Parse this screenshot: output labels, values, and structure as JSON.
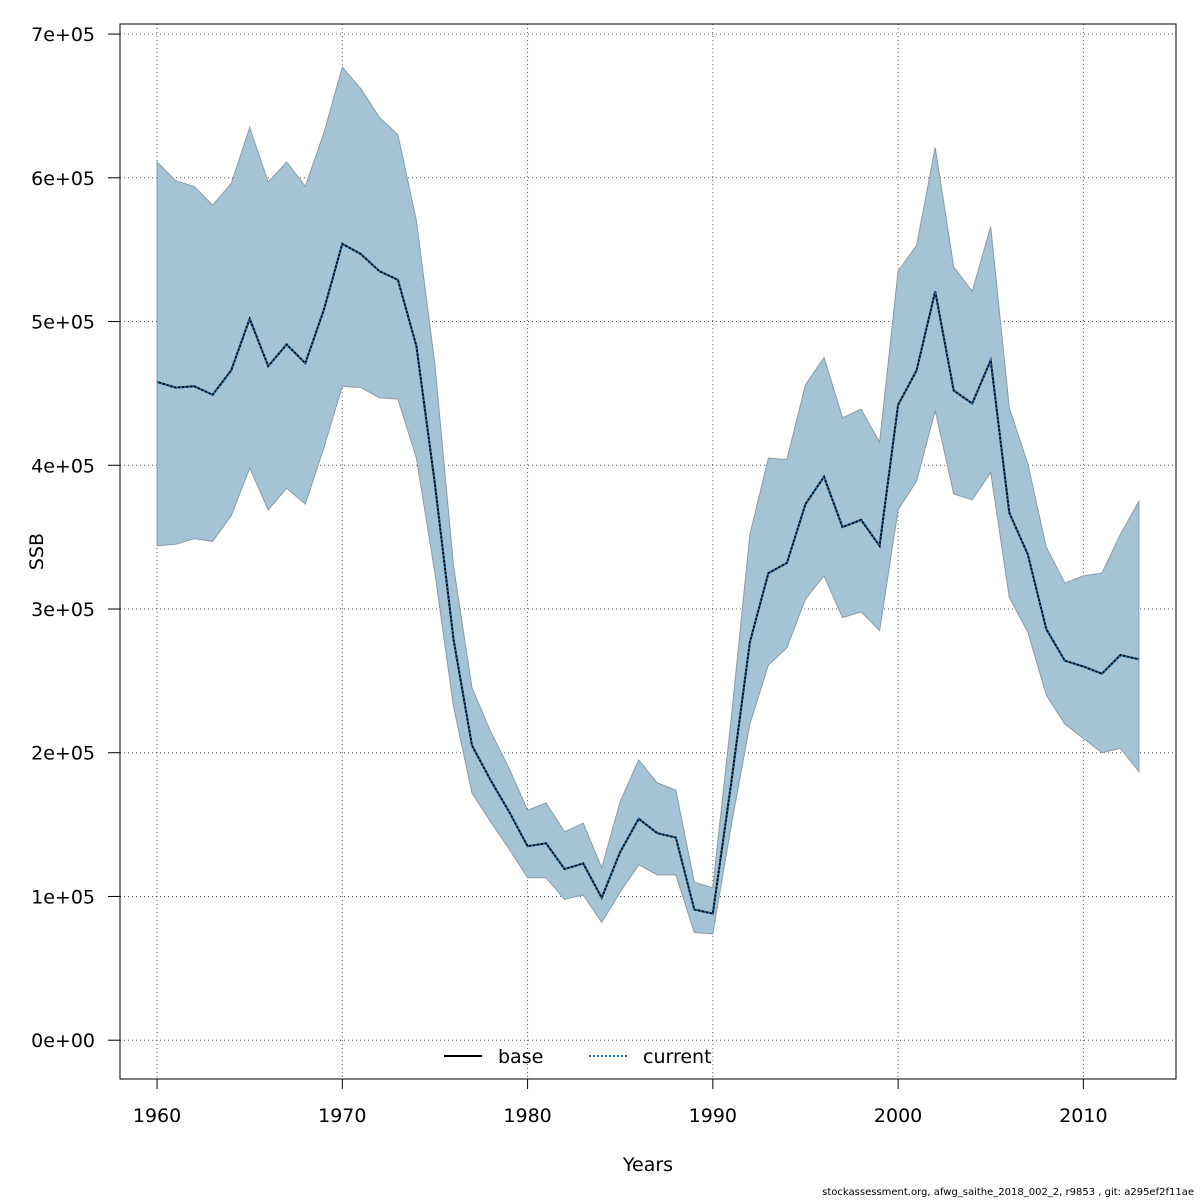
{
  "chart_data": {
    "type": "area",
    "xlabel": "Years",
    "ylabel": "SSB",
    "xlim": [
      1958,
      2015
    ],
    "ylim": [
      -27000,
      707000
    ],
    "x_ticks": [
      1960,
      1970,
      1980,
      1990,
      2000,
      2010
    ],
    "x_tick_labels": [
      "1960",
      "1970",
      "1980",
      "1990",
      "2000",
      "2010"
    ],
    "y_ticks": [
      0,
      100000,
      200000,
      300000,
      400000,
      500000,
      600000,
      700000
    ],
    "y_tick_labels": [
      "0e+00",
      "1e+05",
      "2e+05",
      "3e+05",
      "4e+05",
      "5e+05",
      "6e+05",
      "7e+05"
    ],
    "grid": true,
    "legend_position": "bottom-center",
    "band_color": "#a4c4d6",
    "years": [
      1960,
      1961,
      1962,
      1963,
      1964,
      1965,
      1966,
      1967,
      1968,
      1969,
      1970,
      1971,
      1972,
      1973,
      1974,
      1975,
      1976,
      1977,
      1978,
      1979,
      1980,
      1981,
      1982,
      1983,
      1984,
      1985,
      1986,
      1987,
      1988,
      1989,
      1990,
      1991,
      1992,
      1993,
      1994,
      1995,
      1996,
      1997,
      1998,
      1999,
      2000,
      2001,
      2002,
      2003,
      2004,
      2005,
      2006,
      2007,
      2008,
      2009,
      2010,
      2011,
      2012,
      2013
    ],
    "upper": [
      611000,
      598000,
      594000,
      581000,
      596000,
      635000,
      597000,
      611000,
      594000,
      631000,
      677000,
      662000,
      642000,
      630000,
      570000,
      470000,
      330000,
      245000,
      215000,
      189000,
      160000,
      165000,
      145000,
      151000,
      120000,
      166000,
      195000,
      179000,
      174000,
      110000,
      106000,
      225000,
      352000,
      405000,
      404000,
      456000,
      475000,
      433000,
      439000,
      416000,
      535000,
      553000,
      621000,
      538000,
      521000,
      566000,
      440000,
      401000,
      343000,
      318000,
      323000,
      325000,
      352000,
      375000
    ],
    "lower": [
      344000,
      345000,
      349000,
      347000,
      365000,
      398000,
      369000,
      384000,
      373000,
      412000,
      455000,
      454000,
      447000,
      446000,
      405000,
      325000,
      232000,
      172000,
      152000,
      133000,
      113000,
      113000,
      98000,
      101000,
      82000,
      103000,
      122000,
      115000,
      115000,
      75000,
      74000,
      150000,
      220000,
      261000,
      273000,
      307000,
      323000,
      294000,
      298000,
      285000,
      369000,
      389000,
      438000,
      380000,
      376000,
      395000,
      308000,
      284000,
      240000,
      220000,
      210000,
      200000,
      203000,
      187000
    ],
    "series": [
      {
        "name": "base",
        "color": "#000000",
        "style": "solid",
        "values": [
          458000,
          454000,
          455000,
          449000,
          466000,
          502000,
          469000,
          484000,
          471000,
          508000,
          554000,
          547000,
          535000,
          529000,
          483000,
          387000,
          279000,
          205000,
          181000,
          159000,
          135000,
          137000,
          119000,
          123000,
          99000,
          131000,
          154000,
          144000,
          141000,
          91000,
          88000,
          180000,
          277000,
          325000,
          332000,
          373000,
          392000,
          357000,
          362000,
          344000,
          442000,
          466000,
          521000,
          452000,
          443000,
          473000,
          367000,
          338000,
          286000,
          264000,
          260000,
          255000,
          268000,
          265000
        ]
      },
      {
        "name": "current",
        "color": "#1a6aa8",
        "style": "dotted",
        "values": [
          458000,
          454000,
          455000,
          449000,
          466000,
          502000,
          469000,
          484000,
          471000,
          508000,
          554000,
          547000,
          535000,
          529000,
          483000,
          387000,
          279000,
          205000,
          181000,
          159000,
          135000,
          137000,
          119000,
          123000,
          99000,
          131000,
          154000,
          144000,
          141000,
          91000,
          88000,
          180000,
          277000,
          325000,
          332000,
          373000,
          392000,
          357000,
          362000,
          344000,
          442000,
          466000,
          521000,
          452000,
          443000,
          473000,
          367000,
          338000,
          286000,
          264000,
          260000,
          255000,
          268000,
          265000
        ]
      }
    ]
  },
  "footer_text": "stockassessment.org, afwg_saithe_2018_002_2, r9853 , git: a295ef2f11ae"
}
